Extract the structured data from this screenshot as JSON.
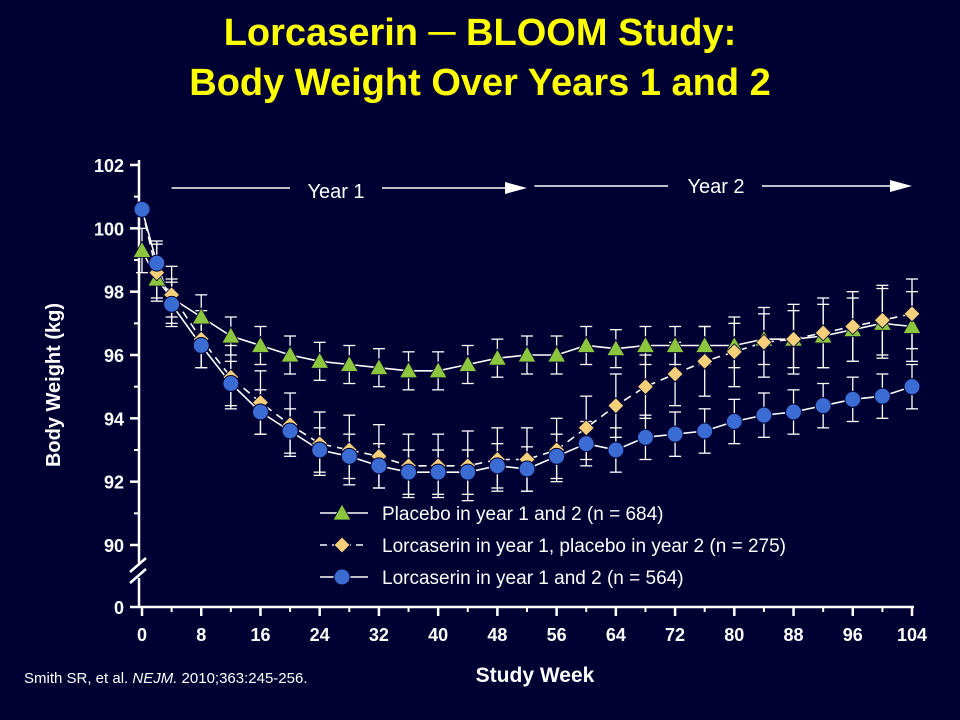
{
  "title": {
    "line1": "Lorcaserin ─ BLOOM Study:",
    "line2": "Body Weight Over Years 1 and 2"
  },
  "citation": {
    "authors": "Smith SR, et al. ",
    "journal": "NEJM.",
    "details": " 2010;363:245-256."
  },
  "colors": {
    "background": "#000033",
    "title": "#ffff00",
    "placebo": "#8cc63f",
    "switch": "#f5cf7a",
    "lorcaserin": "#3a6cd4"
  },
  "chart_data": {
    "type": "line",
    "xlabel": "Study Week",
    "ylabel": "Body Weight (kg)",
    "xlim": [
      0,
      104
    ],
    "ylim": [
      90,
      102
    ],
    "axis_break": true,
    "x_ticks": [
      0,
      8,
      16,
      24,
      32,
      40,
      48,
      56,
      64,
      72,
      80,
      88,
      96,
      104
    ],
    "x_tick_labels": [
      "0",
      "8",
      "16",
      "24",
      "32",
      "40",
      "48",
      "56",
      "64",
      "72",
      "80",
      "88",
      "96",
      "104"
    ],
    "y_ticks": [
      90,
      92,
      94,
      96,
      98,
      100,
      102
    ],
    "y_tick_labels": [
      "90",
      "92",
      "94",
      "96",
      "98",
      "100",
      "102"
    ],
    "y_zero_label": "0",
    "annotations": [
      {
        "text": "Year 1",
        "x_from": 4,
        "x_to": 52
      },
      {
        "text": "Year 2",
        "x_from": 53,
        "x_to": 104
      }
    ],
    "legend_position": "bottom-center",
    "series": [
      {
        "name": "Placebo in year 1 and 2 (n = 684)",
        "marker": "triangle",
        "dashed": false,
        "color": "#8cc63f",
        "x": [
          0,
          2,
          4,
          8,
          12,
          16,
          20,
          24,
          28,
          32,
          36,
          40,
          44,
          48,
          52,
          56,
          60,
          64,
          68,
          72,
          76,
          80,
          84,
          88,
          92,
          96,
          100,
          104
        ],
        "y": [
          99.3,
          98.4,
          97.8,
          97.2,
          96.6,
          96.3,
          96.0,
          95.8,
          95.7,
          95.6,
          95.5,
          95.5,
          95.7,
          95.9,
          96.0,
          96.0,
          96.3,
          96.2,
          96.3,
          96.3,
          96.3,
          96.3,
          96.5,
          96.5,
          96.6,
          96.8,
          97.0,
          96.9
        ],
        "err": [
          0.7,
          0.6,
          0.6,
          0.7,
          0.6,
          0.6,
          0.6,
          0.6,
          0.6,
          0.6,
          0.6,
          0.6,
          0.6,
          0.6,
          0.6,
          0.6,
          0.6,
          0.6,
          0.6,
          0.6,
          0.6,
          0.7,
          0.8,
          0.9,
          1.0,
          1.0,
          1.1,
          1.1
        ]
      },
      {
        "name": "Lorcaserin in year 1, placebo in year 2 (n = 275)",
        "marker": "diamond",
        "dashed": true,
        "color": "#f5cf7a",
        "x": [
          0,
          2,
          4,
          8,
          12,
          16,
          20,
          24,
          28,
          32,
          36,
          40,
          44,
          48,
          52,
          56,
          60,
          64,
          68,
          72,
          76,
          80,
          84,
          88,
          92,
          96,
          100,
          104
        ],
        "y": [
          100.6,
          98.6,
          97.9,
          96.5,
          95.3,
          94.5,
          93.8,
          93.2,
          93.0,
          92.8,
          92.5,
          92.5,
          92.5,
          92.7,
          92.7,
          93.0,
          93.7,
          94.4,
          95.0,
          95.4,
          95.8,
          96.1,
          96.4,
          96.5,
          96.7,
          96.9,
          97.1,
          97.3
        ],
        "err": [
          0.0,
          0.9,
          0.9,
          0.9,
          1.0,
          1.0,
          1.0,
          1.0,
          1.1,
          1.0,
          1.0,
          1.0,
          1.1,
          1.0,
          1.0,
          1.0,
          1.0,
          1.0,
          1.0,
          1.0,
          1.1,
          1.1,
          1.1,
          1.1,
          1.1,
          1.1,
          1.1,
          1.1
        ]
      },
      {
        "name": "Lorcaserin in year 1 and 2 (n = 564)",
        "marker": "circle",
        "dashed": false,
        "color": "#3a6cd4",
        "x": [
          0,
          2,
          4,
          8,
          12,
          16,
          20,
          24,
          28,
          32,
          36,
          40,
          44,
          48,
          52,
          56,
          60,
          64,
          68,
          72,
          76,
          80,
          84,
          88,
          92,
          96,
          100,
          104
        ],
        "y": [
          100.6,
          98.9,
          97.6,
          96.3,
          95.1,
          94.2,
          93.6,
          93.0,
          92.8,
          92.5,
          92.3,
          92.3,
          92.3,
          92.5,
          92.4,
          92.8,
          93.2,
          93.0,
          93.4,
          93.5,
          93.6,
          93.9,
          94.1,
          94.2,
          94.4,
          94.6,
          94.7,
          95.0
        ],
        "err": [
          0.0,
          0.7,
          0.7,
          0.7,
          0.7,
          0.7,
          0.7,
          0.7,
          0.7,
          0.7,
          0.7,
          0.7,
          0.7,
          0.7,
          0.7,
          0.7,
          0.7,
          0.7,
          0.7,
          0.7,
          0.7,
          0.7,
          0.7,
          0.7,
          0.7,
          0.7,
          0.7,
          0.7
        ]
      }
    ]
  }
}
